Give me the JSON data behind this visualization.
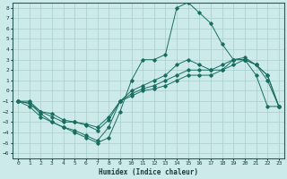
{
  "xlabel": "Humidex (Indice chaleur)",
  "bg_color": "#cceaea",
  "grid_color": "#aacccc",
  "line_color": "#1a6e60",
  "xlim": [
    -0.5,
    23.5
  ],
  "ylim": [
    -6.5,
    8.5
  ],
  "xticks": [
    0,
    1,
    2,
    3,
    4,
    5,
    6,
    7,
    8,
    9,
    10,
    11,
    12,
    13,
    14,
    15,
    16,
    17,
    18,
    19,
    20,
    21,
    22,
    23
  ],
  "yticks": [
    -6,
    -5,
    -4,
    -3,
    -2,
    -1,
    0,
    1,
    2,
    3,
    4,
    5,
    6,
    7,
    8
  ],
  "series1_x": [
    0,
    1,
    2,
    3,
    4,
    5,
    6,
    7,
    8,
    9,
    10,
    11,
    12,
    13,
    14,
    15,
    16,
    17,
    18,
    19,
    20,
    21,
    22,
    23
  ],
  "series1_y": [
    -1,
    -1.5,
    -2.5,
    -3,
    -3.5,
    -4,
    -4.5,
    -5,
    -4.5,
    -2,
    1,
    3,
    3,
    3.5,
    8,
    8.5,
    7.5,
    6.5,
    4.5,
    3,
    3,
    1.5,
    -1.5,
    -1.5
  ],
  "series2_x": [
    0,
    1,
    2,
    3,
    4,
    5,
    6,
    7,
    8,
    9,
    10,
    11,
    12,
    13,
    14,
    15,
    16,
    17,
    18,
    19,
    20,
    21,
    22,
    23
  ],
  "series2_y": [
    -1,
    -1.2,
    -2.2,
    -3,
    -3.5,
    -3.8,
    -4.3,
    -4.8,
    -3.5,
    -1,
    0,
    0.5,
    1,
    1.5,
    2.5,
    3,
    2.5,
    2,
    2,
    3,
    3,
    2.5,
    1,
    -1.5
  ],
  "series3_x": [
    0,
    1,
    2,
    3,
    4,
    5,
    6,
    7,
    8,
    9,
    10,
    11,
    12,
    13,
    14,
    15,
    16,
    17,
    18,
    19,
    20,
    21,
    22,
    23
  ],
  "series3_y": [
    -1,
    -1,
    -2,
    -2.5,
    -3,
    -3,
    -3.2,
    -3.5,
    -2.5,
    -1,
    -0.5,
    0,
    0.2,
    0.5,
    1,
    1.5,
    1.5,
    1.5,
    2,
    2.5,
    3,
    2.5,
    1.5,
    -1.5
  ],
  "series4_x": [
    0,
    1,
    2,
    3,
    4,
    5,
    6,
    7,
    8,
    9,
    10,
    11,
    12,
    13,
    14,
    15,
    16,
    17,
    18,
    19,
    20,
    21,
    22,
    23
  ],
  "series4_y": [
    -1,
    -1.2,
    -2,
    -2.2,
    -2.8,
    -3,
    -3.3,
    -3.8,
    -2.8,
    -1,
    -0.3,
    0.2,
    0.5,
    1,
    1.5,
    2,
    2,
    2,
    2.5,
    3,
    3.2,
    2.5,
    1.5,
    -1.5
  ]
}
